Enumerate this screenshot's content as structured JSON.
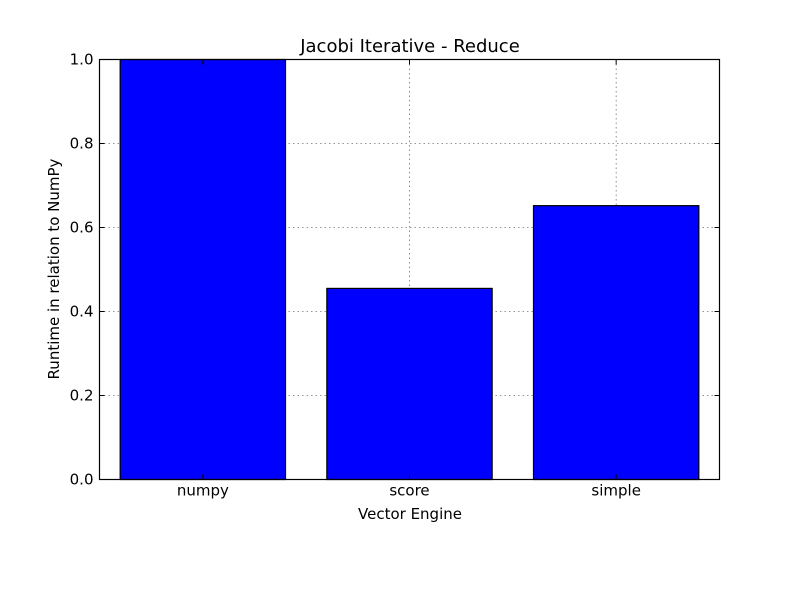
{
  "chart_data": {
    "type": "bar",
    "title": "Jacobi Iterative - Reduce",
    "xlabel": "Vector Engine",
    "ylabel": "Runtime in relation to NumPy",
    "categories": [
      "numpy",
      "score",
      "simple"
    ],
    "values": [
      1.0,
      0.455,
      0.652
    ],
    "ylim": [
      0,
      1.0
    ],
    "yticks": [
      "0.0",
      "0.2",
      "0.4",
      "0.6",
      "0.8",
      "1.0"
    ],
    "grid": true,
    "bar_color": "#0000ff",
    "edge_color": "#000000"
  }
}
